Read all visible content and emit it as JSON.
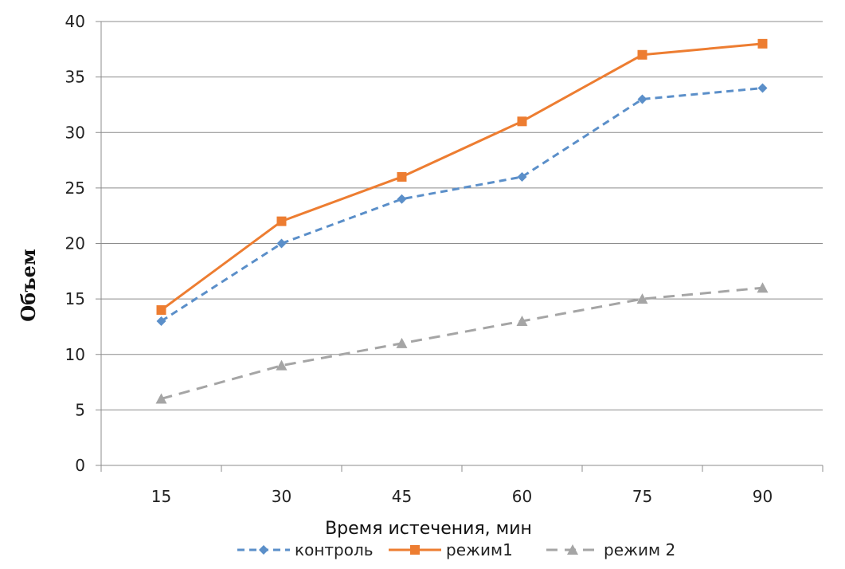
{
  "chart_data": {
    "type": "line",
    "title": "",
    "xlabel": "Время истечения, мин",
    "ylabel": "Объем",
    "categories": [
      "15",
      "30",
      "45",
      "60",
      "75",
      "90"
    ],
    "ylim": [
      0,
      40
    ],
    "yticks": [
      "0",
      "5",
      "10",
      "15",
      "20",
      "25",
      "30",
      "35",
      "40"
    ],
    "grid": "horizontal",
    "legend_position": "bottom",
    "series": [
      {
        "name": "контроль",
        "values": [
          13,
          20,
          24,
          26,
          33,
          34
        ],
        "color": "#5B8FC9",
        "line": "dashed",
        "marker": "diamond"
      },
      {
        "name": "режим1",
        "values": [
          14,
          22,
          26,
          31,
          37,
          38
        ],
        "color": "#ED7D31",
        "line": "solid",
        "marker": "square"
      },
      {
        "name": "режим 2",
        "values": [
          6,
          9,
          11,
          13,
          15,
          16
        ],
        "color": "#A5A5A5",
        "line": "dashed",
        "marker": "triangle"
      }
    ]
  }
}
